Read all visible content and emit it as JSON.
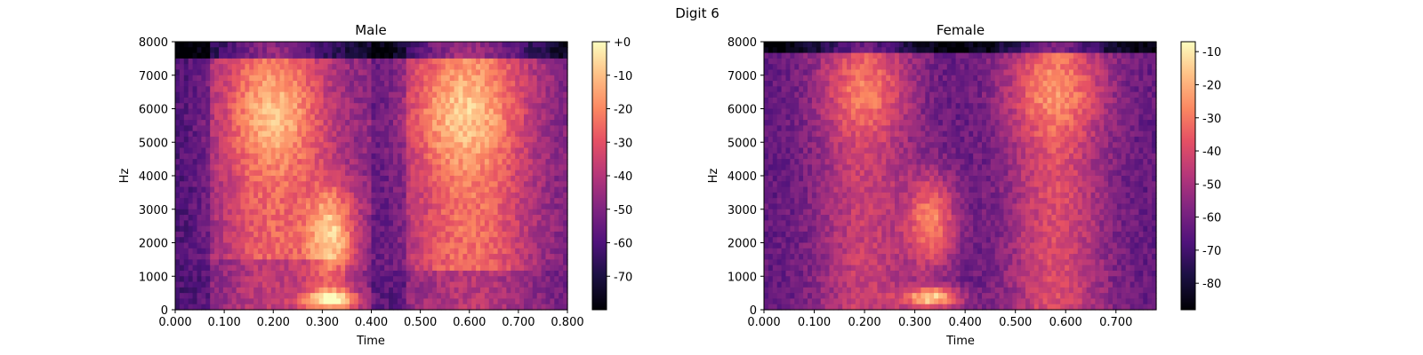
{
  "figure": {
    "suptitle": "Digit 6"
  },
  "chart_data": [
    {
      "type": "heatmap",
      "title": "Male",
      "xlabel": "Time",
      "ylabel": "Hz",
      "xlim": [
        0,
        0.8
      ],
      "ylim": [
        0,
        8000
      ],
      "xticks": [
        "0.000",
        "0.100",
        "0.200",
        "0.300",
        "0.400",
        "0.500",
        "0.600",
        "0.700",
        "0.800"
      ],
      "yticks": [
        "0",
        "1000",
        "2000",
        "3000",
        "4000",
        "5000",
        "6000",
        "7000",
        "8000"
      ],
      "colorbar": {
        "range_db": [
          -80,
          0
        ],
        "ticks": [
          "+0",
          "-10",
          "-20",
          "-30",
          "-40",
          "-50",
          "-60",
          "-70"
        ],
        "colormap": "magma"
      }
    },
    {
      "type": "heatmap",
      "title": "Female",
      "xlabel": "Time",
      "ylabel": "Hz",
      "xlim": [
        0,
        0.78
      ],
      "ylim": [
        0,
        8000
      ],
      "xticks": [
        "0.000",
        "0.100",
        "0.200",
        "0.300",
        "0.400",
        "0.500",
        "0.600",
        "0.700"
      ],
      "yticks": [
        "0",
        "1000",
        "2000",
        "3000",
        "4000",
        "5000",
        "6000",
        "7000",
        "8000"
      ],
      "colorbar": {
        "range_db": [
          -88,
          -7
        ],
        "ticks": [
          "-10",
          "-20",
          "-30",
          "-40",
          "-50",
          "-60",
          "-70",
          "-80"
        ],
        "colormap": "magma"
      }
    }
  ]
}
